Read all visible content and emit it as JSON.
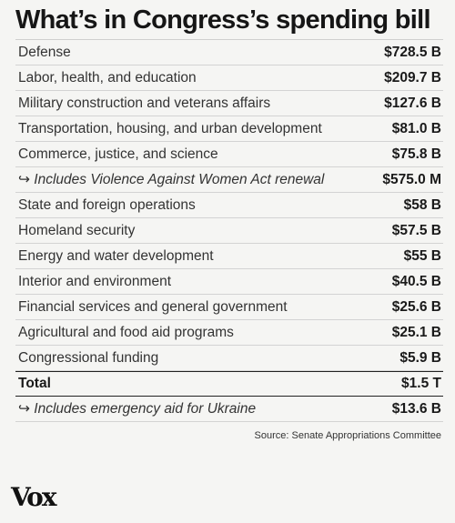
{
  "title": "What’s in Congress’s spending bill",
  "rows": [
    {
      "label": "Defense",
      "value": "$728.5 B"
    },
    {
      "label": "Labor, health, and education",
      "value": "$209.7 B"
    },
    {
      "label": "Military construction and veterans affairs",
      "value": "$127.6 B"
    },
    {
      "label": "Transportation, housing, and urban development",
      "value": "$81.0 B"
    },
    {
      "label": "Commerce, justice, and science",
      "value": "$75.8 B"
    },
    {
      "label": "↪ Includes Violence Against Women Act renewal",
      "value": "$575.0 M"
    },
    {
      "label": "State and foreign operations",
      "value": "$58 B"
    },
    {
      "label": "Homeland security",
      "value": "$57.5 B"
    },
    {
      "label": "Energy and water development",
      "value": "$55 B"
    },
    {
      "label": "Interior and environment",
      "value": "$40.5 B"
    },
    {
      "label": "Financial services and general government",
      "value": "$25.6 B"
    },
    {
      "label": "Agricultural and food aid programs",
      "value": "$25.1 B"
    },
    {
      "label": "Congressional funding",
      "value": "$5.9 B"
    },
    {
      "label": "Total",
      "value": "$1.5 T"
    },
    {
      "label": "↪ Includes emergency aid for Ukraine",
      "value": "$13.6 B"
    }
  ],
  "source": "Source: Senate Appropriations Committee",
  "logo": "Vox"
}
